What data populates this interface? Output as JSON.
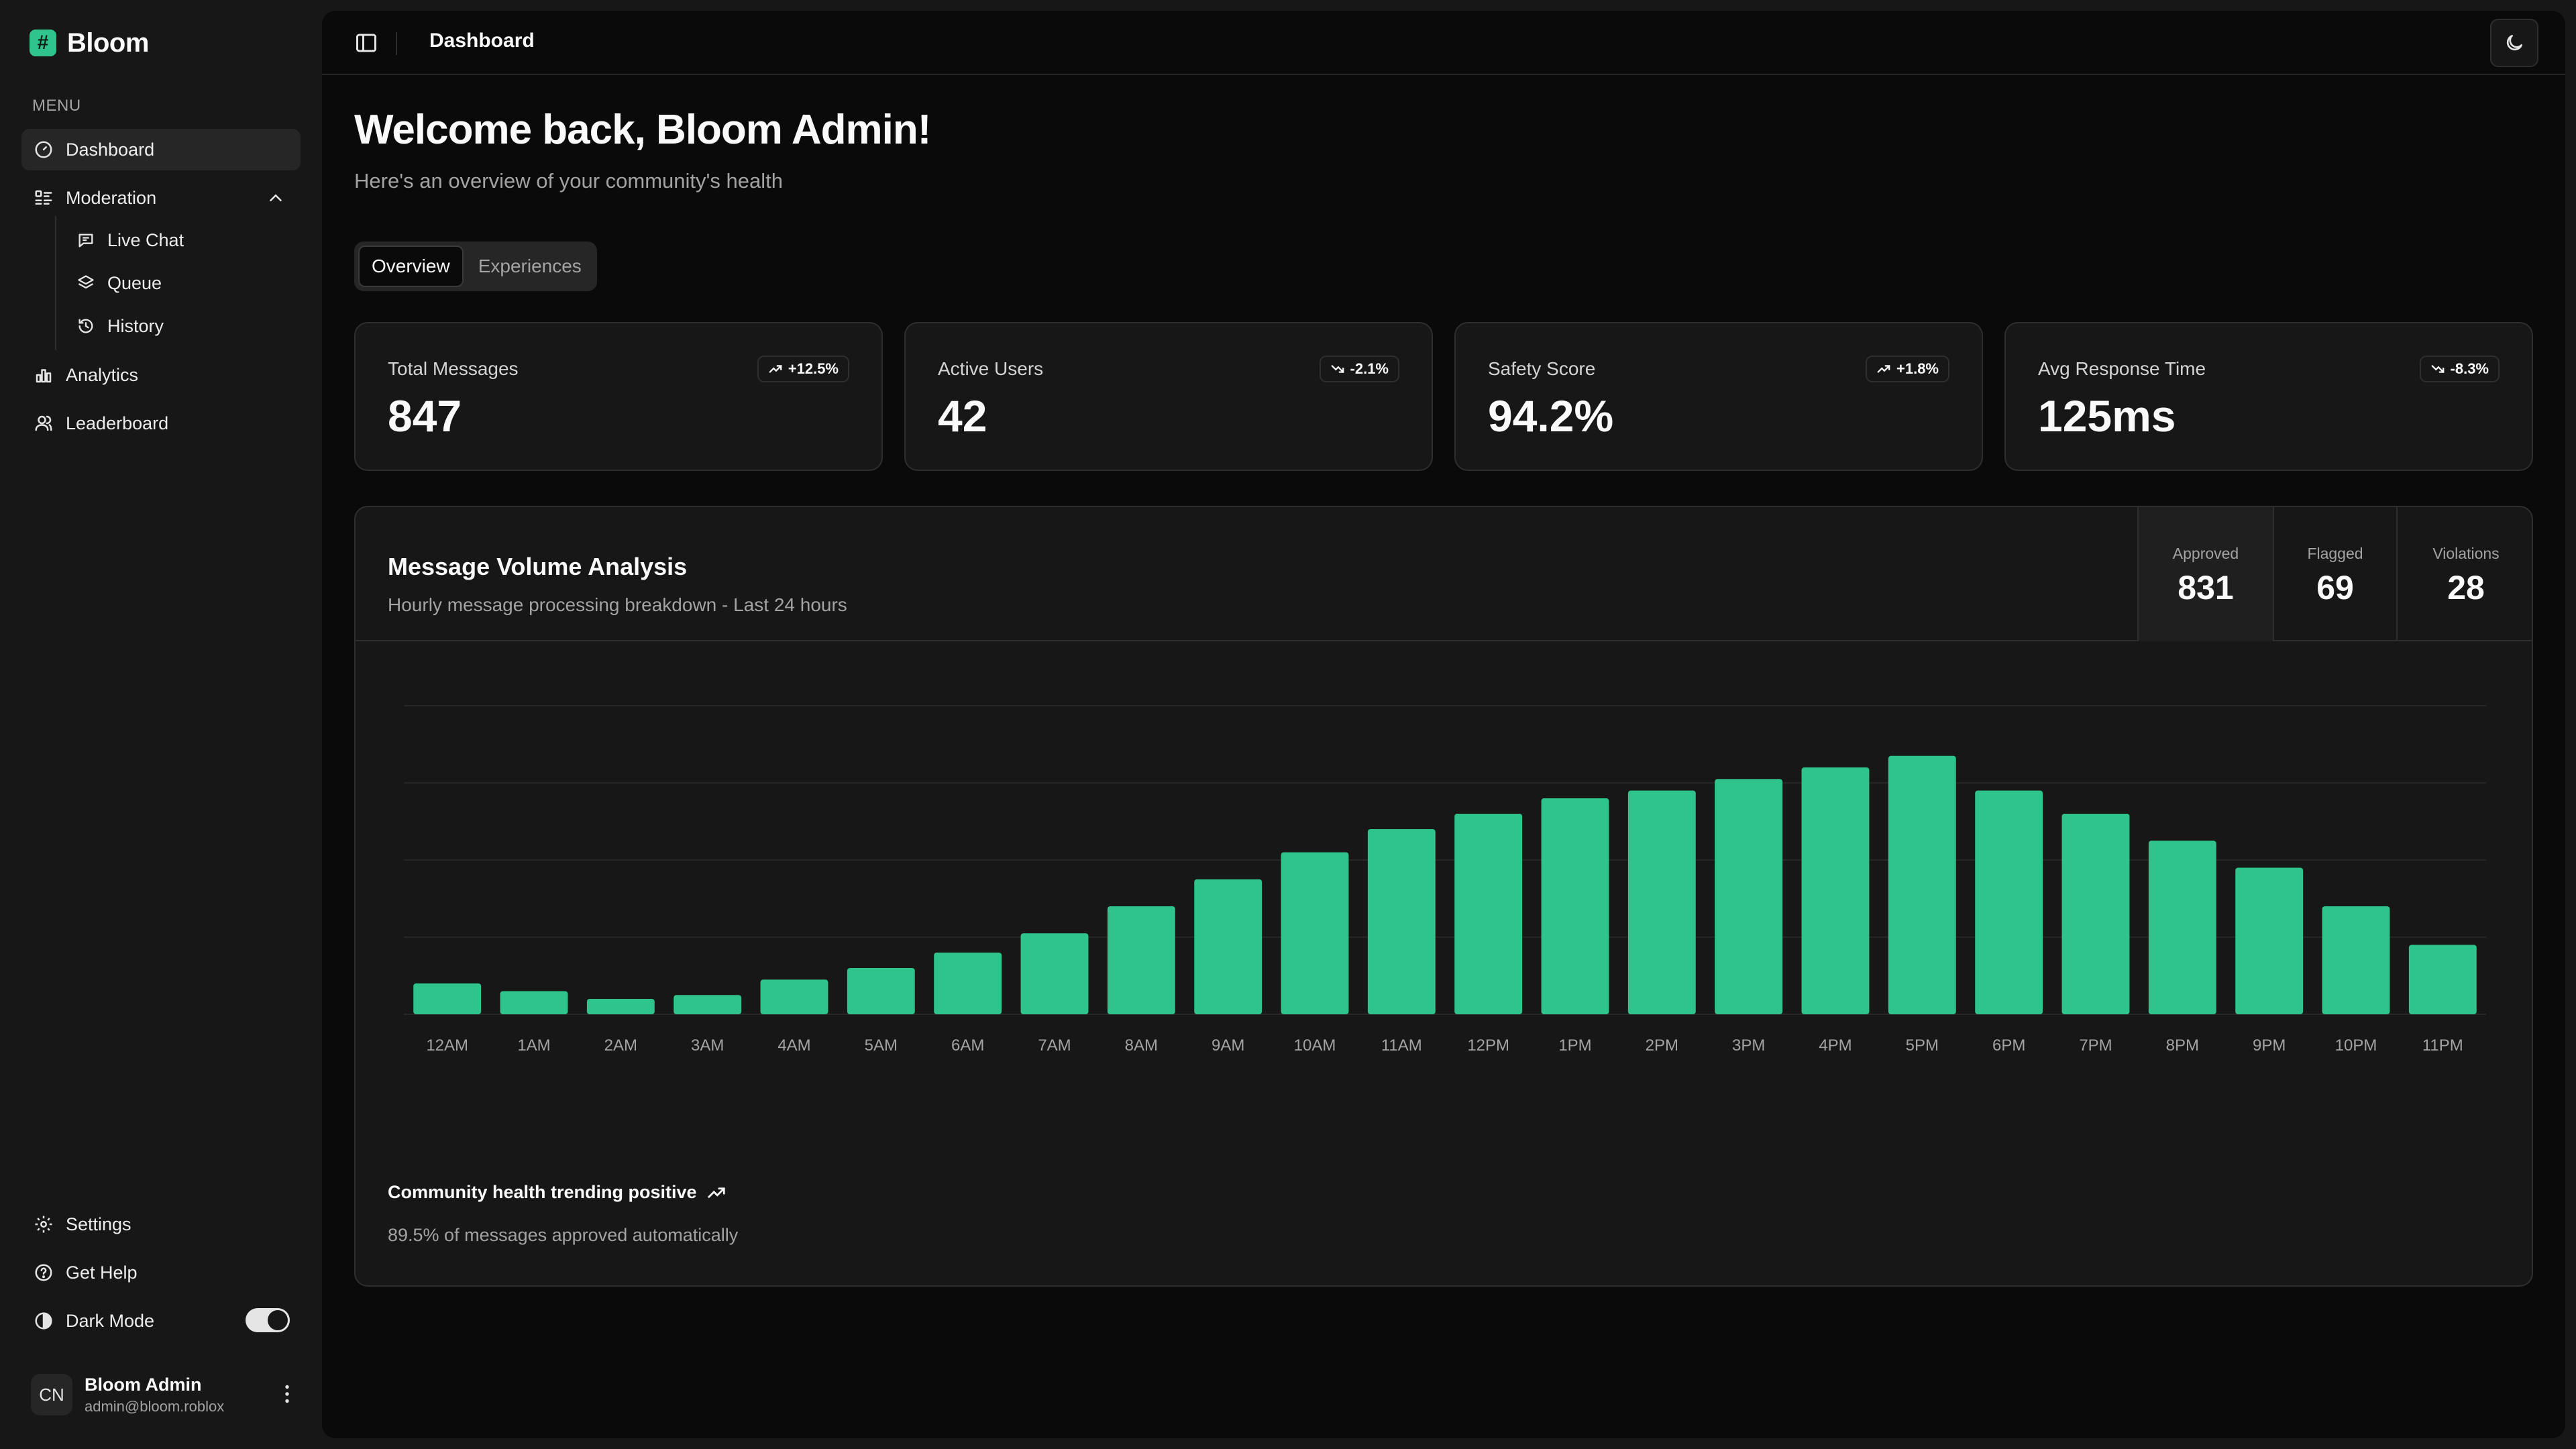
{
  "brand": {
    "name": "Bloom",
    "logo_glyph": "#"
  },
  "sidebar": {
    "menu_label": "MENU",
    "items": [
      {
        "label": "Dashboard",
        "icon": "gauge-icon"
      },
      {
        "label": "Moderation",
        "icon": "list-icon"
      },
      {
        "label": "Analytics",
        "icon": "bar-chart-icon"
      },
      {
        "label": "Leaderboard",
        "icon": "users-icon"
      }
    ],
    "moderation_sub": [
      {
        "label": "Live Chat",
        "icon": "message-icon"
      },
      {
        "label": "Queue",
        "icon": "layers-icon"
      },
      {
        "label": "History",
        "icon": "history-icon"
      }
    ],
    "bottom": [
      {
        "label": "Settings",
        "icon": "gear-icon"
      },
      {
        "label": "Get Help",
        "icon": "help-icon"
      },
      {
        "label": "Dark Mode",
        "icon": "contrast-icon"
      }
    ],
    "dark_mode_on": true,
    "user": {
      "initials": "CN",
      "name": "Bloom Admin",
      "email": "admin@bloom.roblox"
    }
  },
  "topbar": {
    "title": "Dashboard"
  },
  "welcome": {
    "heading": "Welcome back, Bloom Admin!",
    "subtitle": "Here's an overview of your community's health"
  },
  "tabs": [
    {
      "label": "Overview",
      "active": true
    },
    {
      "label": "Experiences",
      "active": false
    }
  ],
  "metrics": [
    {
      "label": "Total Messages",
      "value": "847",
      "change": "+12.5%",
      "trend": "up"
    },
    {
      "label": "Active Users",
      "value": "42",
      "change": "-2.1%",
      "trend": "down"
    },
    {
      "label": "Safety Score",
      "value": "94.2%",
      "change": "+1.8%",
      "trend": "up"
    },
    {
      "label": "Avg Response Time",
      "value": "125ms",
      "change": "-8.3%",
      "trend": "down"
    }
  ],
  "volume": {
    "title": "Message Volume Analysis",
    "subtitle": "Hourly message processing breakdown - Last 24 hours",
    "stats": [
      {
        "label": "Approved",
        "value": "831"
      },
      {
        "label": "Flagged",
        "value": "69"
      },
      {
        "label": "Violations",
        "value": "28"
      }
    ],
    "footer_title": "Community health trending positive",
    "footer_sub": "89.5% of messages approved automatically"
  },
  "colors": {
    "accent": "#2ec48c",
    "grid": "#262626",
    "bg": "#0a0a0a"
  },
  "chart_data": {
    "type": "bar",
    "title": "Message Volume Analysis",
    "categories": [
      "12AM",
      "1AM",
      "2AM",
      "3AM",
      "4AM",
      "5AM",
      "6AM",
      "7AM",
      "8AM",
      "9AM",
      "10AM",
      "11AM",
      "12PM",
      "1PM",
      "2PM",
      "3PM",
      "4PM",
      "5PM",
      "6PM",
      "7PM",
      "8PM",
      "9PM",
      "10PM",
      "11PM"
    ],
    "values": [
      8,
      6,
      4,
      5,
      9,
      12,
      16,
      21,
      28,
      35,
      42,
      48,
      52,
      56,
      58,
      61,
      64,
      67,
      58,
      52,
      45,
      38,
      28,
      18
    ],
    "ylim": [
      0,
      80
    ],
    "grid": true,
    "xlabel": "",
    "ylabel": ""
  }
}
